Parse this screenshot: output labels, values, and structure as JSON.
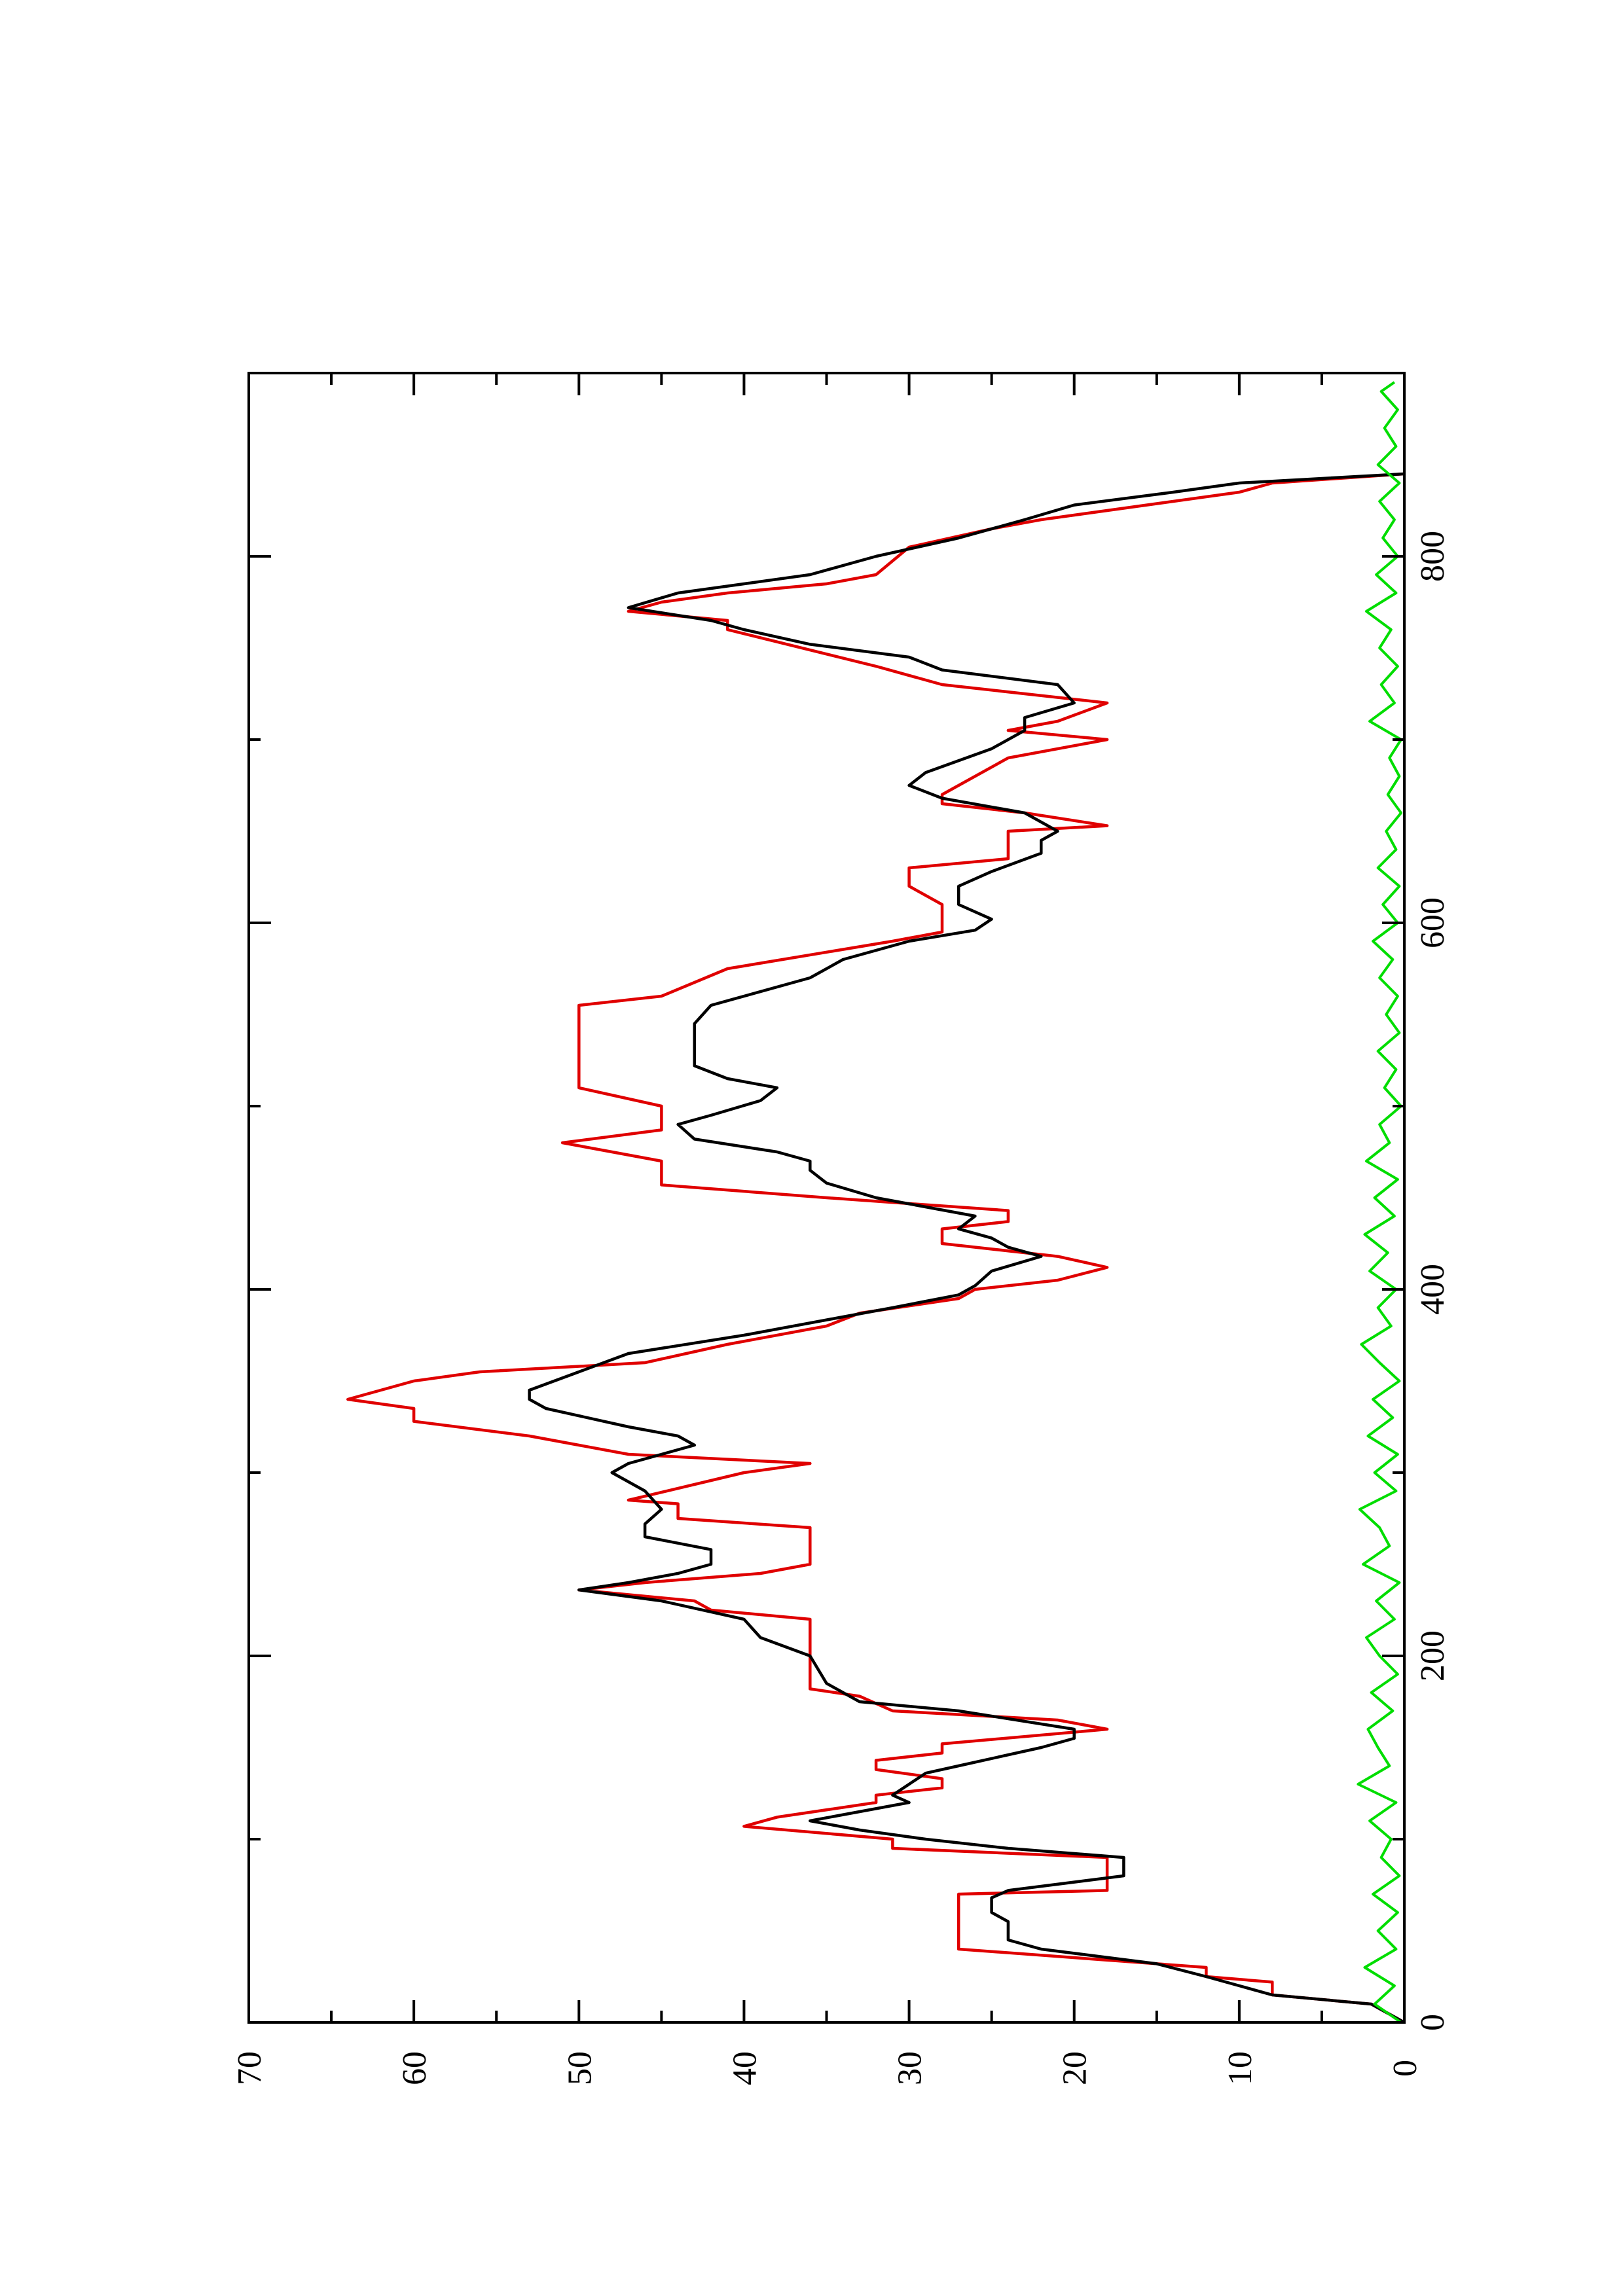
{
  "chart_data": {
    "type": "line",
    "orientation": "rotated 90 degrees counter-clockwise (x axis runs vertically, y axis horizontally)",
    "title": "",
    "xlabel": "",
    "ylabel": "",
    "xlim": [
      0,
      900
    ],
    "ylim": [
      0,
      70
    ],
    "x_ticks": [
      0,
      200,
      400,
      600,
      800
    ],
    "x_minor_ticks": [
      100,
      300,
      500,
      700
    ],
    "y_ticks": [
      0,
      10,
      20,
      30,
      40,
      50,
      60,
      70
    ],
    "grid": false,
    "legend": "none",
    "series": [
      {
        "color": "#e00000",
        "style": "step",
        "points": [
          [
            0,
            0
          ],
          [
            10,
            2
          ],
          [
            15,
            8
          ],
          [
            22,
            8
          ],
          [
            25,
            12
          ],
          [
            30,
            12
          ],
          [
            40,
            27
          ],
          [
            70,
            27
          ],
          [
            72,
            18
          ],
          [
            90,
            18
          ],
          [
            95,
            31
          ],
          [
            100,
            31
          ],
          [
            107,
            40
          ],
          [
            112,
            38
          ],
          [
            120,
            32
          ],
          [
            124,
            32
          ],
          [
            128,
            28
          ],
          [
            133,
            28
          ],
          [
            138,
            32
          ],
          [
            143,
            32
          ],
          [
            147,
            28
          ],
          [
            152,
            28
          ],
          [
            160,
            18
          ],
          [
            165,
            21
          ],
          [
            170,
            31
          ],
          [
            178,
            33
          ],
          [
            182,
            36
          ],
          [
            220,
            36
          ],
          [
            225,
            42
          ],
          [
            230,
            43
          ],
          [
            236,
            50
          ],
          [
            240,
            46
          ],
          [
            245,
            39
          ],
          [
            250,
            36
          ],
          [
            270,
            36
          ],
          [
            275,
            44
          ],
          [
            283,
            44
          ],
          [
            285,
            47
          ],
          [
            300,
            40
          ],
          [
            305,
            36
          ],
          [
            310,
            47
          ],
          [
            320,
            53
          ],
          [
            328,
            60
          ],
          [
            335,
            60
          ],
          [
            340,
            64
          ],
          [
            345,
            62
          ],
          [
            350,
            60
          ],
          [
            355,
            56
          ],
          [
            360,
            46
          ],
          [
            370,
            41
          ],
          [
            380,
            35
          ],
          [
            387,
            33
          ],
          [
            395,
            27
          ],
          [
            400,
            26
          ],
          [
            405,
            21
          ],
          [
            412,
            18
          ],
          [
            418,
            21
          ],
          [
            425,
            28
          ],
          [
            433,
            28
          ],
          [
            437,
            24
          ],
          [
            443,
            24
          ],
          [
            450,
            35
          ],
          [
            457,
            45
          ],
          [
            470,
            45
          ],
          [
            475,
            48
          ],
          [
            480,
            51
          ],
          [
            487,
            45
          ],
          [
            500,
            45
          ],
          [
            510,
            50
          ],
          [
            555,
            50
          ],
          [
            560,
            45
          ],
          [
            575,
            41
          ],
          [
            590,
            31
          ],
          [
            595,
            28
          ],
          [
            610,
            28
          ],
          [
            620,
            30
          ],
          [
            630,
            30
          ],
          [
            635,
            24
          ],
          [
            650,
            24
          ],
          [
            653,
            18
          ],
          [
            660,
            23
          ],
          [
            665,
            28
          ],
          [
            670,
            28
          ],
          [
            675,
            27
          ],
          [
            690,
            24
          ],
          [
            700,
            18
          ],
          [
            705,
            24
          ],
          [
            710,
            21
          ],
          [
            720,
            18
          ],
          [
            725,
            23
          ],
          [
            730,
            28
          ],
          [
            740,
            32
          ],
          [
            760,
            41
          ],
          [
            765,
            41
          ],
          [
            770,
            47
          ],
          [
            775,
            45
          ],
          [
            780,
            41
          ],
          [
            785,
            35
          ],
          [
            790,
            32
          ],
          [
            805,
            30
          ],
          [
            815,
            25
          ],
          [
            820,
            22
          ],
          [
            835,
            10
          ],
          [
            840,
            8
          ],
          [
            845,
            0
          ]
        ]
      },
      {
        "color": "#000000",
        "style": "line",
        "points": [
          [
            0,
            0
          ],
          [
            10,
            2
          ],
          [
            15,
            8
          ],
          [
            20,
            10
          ],
          [
            25,
            12
          ],
          [
            32,
            15
          ],
          [
            40,
            22
          ],
          [
            45,
            24
          ],
          [
            55,
            24
          ],
          [
            60,
            25
          ],
          [
            68,
            25
          ],
          [
            72,
            24
          ],
          [
            80,
            17
          ],
          [
            90,
            17
          ],
          [
            95,
            24
          ],
          [
            100,
            29
          ],
          [
            105,
            33
          ],
          [
            110,
            36
          ],
          [
            115,
            33
          ],
          [
            120,
            30
          ],
          [
            124,
            31
          ],
          [
            130,
            30
          ],
          [
            136,
            29
          ],
          [
            140,
            27
          ],
          [
            150,
            22
          ],
          [
            155,
            20
          ],
          [
            160,
            20
          ],
          [
            170,
            27
          ],
          [
            175,
            33
          ],
          [
            180,
            34
          ],
          [
            185,
            35
          ],
          [
            200,
            36
          ],
          [
            210,
            39
          ],
          [
            220,
            40
          ],
          [
            230,
            45
          ],
          [
            236,
            50
          ],
          [
            240,
            47
          ],
          [
            245,
            44
          ],
          [
            250,
            42
          ],
          [
            258,
            42
          ],
          [
            265,
            46
          ],
          [
            272,
            46
          ],
          [
            280,
            45
          ],
          [
            290,
            46
          ],
          [
            300,
            48
          ],
          [
            305,
            47
          ],
          [
            310,
            45
          ],
          [
            315,
            43
          ],
          [
            320,
            44
          ],
          [
            325,
            47
          ],
          [
            335,
            52
          ],
          [
            340,
            53
          ],
          [
            345,
            53
          ],
          [
            355,
            50
          ],
          [
            365,
            47
          ],
          [
            375,
            40
          ],
          [
            385,
            34
          ],
          [
            390,
            31
          ],
          [
            397,
            27
          ],
          [
            402,
            26
          ],
          [
            410,
            25
          ],
          [
            418,
            22
          ],
          [
            423,
            24
          ],
          [
            428,
            25
          ],
          [
            433,
            27
          ],
          [
            440,
            26
          ],
          [
            450,
            32
          ],
          [
            458,
            35
          ],
          [
            465,
            36
          ],
          [
            470,
            36
          ],
          [
            475,
            38
          ],
          [
            482,
            43
          ],
          [
            490,
            44
          ],
          [
            495,
            42
          ],
          [
            503,
            39
          ],
          [
            510,
            38
          ],
          [
            515,
            41
          ],
          [
            522,
            43
          ],
          [
            545,
            43
          ],
          [
            555,
            42
          ],
          [
            570,
            36
          ],
          [
            580,
            34
          ],
          [
            590,
            30
          ],
          [
            596,
            26
          ],
          [
            602,
            25
          ],
          [
            610,
            27
          ],
          [
            620,
            27
          ],
          [
            628,
            25
          ],
          [
            638,
            22
          ],
          [
            645,
            22
          ],
          [
            650,
            21
          ],
          [
            660,
            23
          ],
          [
            668,
            28
          ],
          [
            675,
            30
          ],
          [
            682,
            29
          ],
          [
            695,
            25
          ],
          [
            705,
            23
          ],
          [
            712,
            23
          ],
          [
            720,
            20
          ],
          [
            730,
            21
          ],
          [
            738,
            28
          ],
          [
            745,
            30
          ],
          [
            752,
            36
          ],
          [
            760,
            40
          ],
          [
            765,
            42
          ],
          [
            772,
            47
          ],
          [
            780,
            44
          ],
          [
            790,
            36
          ],
          [
            800,
            32
          ],
          [
            810,
            27
          ],
          [
            820,
            23
          ],
          [
            828,
            20
          ],
          [
            835,
            14
          ],
          [
            840,
            10
          ],
          [
            845,
            0
          ]
        ]
      },
      {
        "color": "#00dd00",
        "style": "noise",
        "note": "fluctuating baseline between 0 and about 2.5 across the whole x range",
        "points": [
          [
            0,
            0.2
          ],
          [
            10,
            1.8
          ],
          [
            20,
            0.6
          ],
          [
            30,
            2.4
          ],
          [
            40,
            0.5
          ],
          [
            50,
            1.6
          ],
          [
            60,
            0.4
          ],
          [
            70,
            1.9
          ],
          [
            80,
            0.3
          ],
          [
            90,
            1.4
          ],
          [
            100,
            0.8
          ],
          [
            110,
            2.1
          ],
          [
            120,
            0.5
          ],
          [
            130,
            2.8
          ],
          [
            140,
            0.9
          ],
          [
            150,
            1.6
          ],
          [
            160,
            2.2
          ],
          [
            170,
            0.7
          ],
          [
            180,
            2.0
          ],
          [
            190,
            0.4
          ],
          [
            200,
            1.5
          ],
          [
            210,
            2.3
          ],
          [
            220,
            0.6
          ],
          [
            230,
            1.7
          ],
          [
            240,
            0.3
          ],
          [
            250,
            2.5
          ],
          [
            260,
            0.9
          ],
          [
            270,
            1.5
          ],
          [
            280,
            2.7
          ],
          [
            290,
            0.5
          ],
          [
            300,
            1.8
          ],
          [
            310,
            0.4
          ],
          [
            320,
            2.2
          ],
          [
            330,
            0.7
          ],
          [
            340,
            1.9
          ],
          [
            350,
            0.3
          ],
          [
            360,
            1.5
          ],
          [
            370,
            2.6
          ],
          [
            380,
            0.8
          ],
          [
            390,
            1.6
          ],
          [
            400,
            0.5
          ],
          [
            410,
            2.1
          ],
          [
            420,
            1.0
          ],
          [
            430,
            2.4
          ],
          [
            440,
            0.6
          ],
          [
            450,
            1.8
          ],
          [
            460,
            0.4
          ],
          [
            470,
            2.3
          ],
          [
            480,
            0.9
          ],
          [
            490,
            1.5
          ],
          [
            500,
            0.2
          ],
          [
            510,
            1.2
          ],
          [
            520,
            0.5
          ],
          [
            530,
            1.6
          ],
          [
            540,
            0.3
          ],
          [
            550,
            1.1
          ],
          [
            560,
            0.4
          ],
          [
            570,
            1.5
          ],
          [
            580,
            0.7
          ],
          [
            590,
            1.9
          ],
          [
            600,
            0.4
          ],
          [
            610,
            1.3
          ],
          [
            620,
            0.3
          ],
          [
            630,
            1.6
          ],
          [
            640,
            0.5
          ],
          [
            650,
            1.1
          ],
          [
            660,
            0.2
          ],
          [
            670,
            1.0
          ],
          [
            680,
            0.3
          ],
          [
            690,
            0.9
          ],
          [
            700,
            0.2
          ],
          [
            710,
            2.1
          ],
          [
            720,
            0.6
          ],
          [
            730,
            1.4
          ],
          [
            740,
            0.4
          ],
          [
            750,
            1.5
          ],
          [
            760,
            0.8
          ],
          [
            770,
            2.3
          ],
          [
            780,
            0.5
          ],
          [
            790,
            1.7
          ],
          [
            800,
            0.4
          ],
          [
            810,
            1.3
          ],
          [
            820,
            0.6
          ],
          [
            830,
            1.5
          ],
          [
            840,
            0.3
          ],
          [
            850,
            1.6
          ],
          [
            860,
            0.5
          ],
          [
            870,
            1.2
          ],
          [
            880,
            0.4
          ],
          [
            890,
            1.4
          ],
          [
            895,
            0.6
          ]
        ]
      }
    ]
  }
}
